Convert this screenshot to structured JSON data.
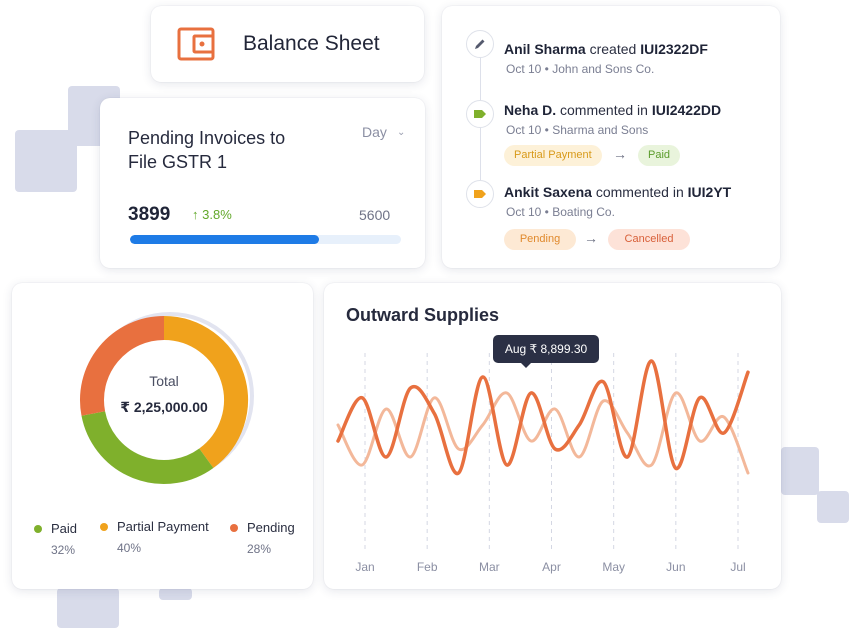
{
  "balance_sheet": {
    "title": "Balance Sheet",
    "icon": "wallet-icon",
    "accent": "#e8703f"
  },
  "pending_invoices": {
    "title": "Pending Invoices to File GSTR 1",
    "period": "Day",
    "value": "3899",
    "change": "3.8%",
    "target": "5600",
    "progress_fraction": 0.696
  },
  "activity": [
    {
      "user": "Anil Sharma",
      "action": "created",
      "ref": "IUI2322DF",
      "meta": "Oct 10 • John and Sons Co.",
      "icon": "pencil-icon"
    },
    {
      "user": "Neha D.",
      "action": "commented in",
      "ref": "IUI2422DD",
      "meta": "Oct 10 • Sharma and Sons",
      "icon": "tag-icon",
      "from": "Partial Payment",
      "to": "Paid"
    },
    {
      "user": "Ankit Saxena",
      "action": "commented in",
      "ref": "IUI2YT",
      "meta": "Oct 10 • Boating Co.",
      "icon": "tag-icon",
      "from": "Pending",
      "to": "Cancelled"
    }
  ],
  "donut": {
    "total_label": "Total",
    "total_value": "₹ 2,25,000.00",
    "legend": [
      {
        "label": "Paid",
        "pct": "32%",
        "color": "#7fb02c"
      },
      {
        "label": "Partial Payment",
        "pct": "40%",
        "color": "#f0a21c"
      },
      {
        "label": "Pending",
        "pct": "28%",
        "color": "#e8703f"
      }
    ]
  },
  "outward": {
    "title": "Outward Supplies",
    "tooltip": "Aug ₹ 8,899.30"
  },
  "chart_data": {
    "type": "pie",
    "title": "",
    "categories": [
      "Paid",
      "Partial Payment",
      "Pending"
    ],
    "values": [
      32,
      40,
      28
    ],
    "legend_position": "bottom"
  },
  "line_chart": {
    "type": "line",
    "x_labels": [
      "Jan",
      "Feb",
      "Mar",
      "Apr",
      "May",
      "Jun",
      "Jul"
    ],
    "series": [
      {
        "values": [
          0.45,
          0.72,
          0.35,
          0.78,
          0.62,
          0.25,
          0.85,
          0.3,
          0.75,
          0.4,
          0.55,
          0.82,
          0.35,
          0.95,
          0.28,
          0.72,
          0.5,
          0.88
        ],
        "color": "#e8703f"
      },
      {
        "values": [
          0.55,
          0.3,
          0.65,
          0.35,
          0.72,
          0.4,
          0.55,
          0.75,
          0.45,
          0.65,
          0.35,
          0.7,
          0.5,
          0.3,
          0.75,
          0.45,
          0.6,
          0.25
        ],
        "color": "#f3b89a"
      }
    ]
  }
}
